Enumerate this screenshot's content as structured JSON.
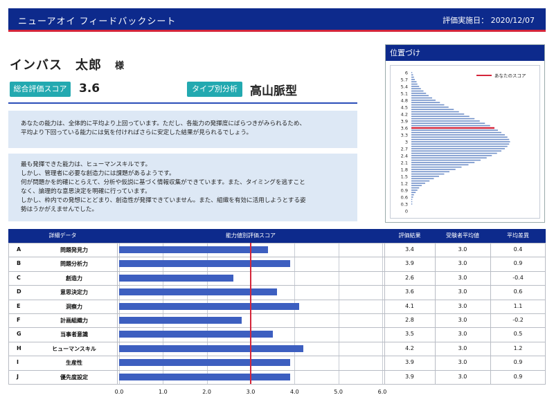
{
  "header": {
    "title": "ニューアオイ フィードバックシート",
    "date_label": "評価実施日： 2020/12/07"
  },
  "person": {
    "name": "インバス　太郎",
    "honorific": "様"
  },
  "summary": {
    "overall_label": "総合評価スコア",
    "overall_value": "3.6",
    "type_label": "タイプ別分析",
    "type_value": "高山脈型"
  },
  "comment1": {
    "lines": [
      "あなたの能力は、全体的に平均より上回っています。ただし、各能力の発揮度にばらつきがみられるため、",
      "平均より下回っている能力には気を付ければさらに安定した結果が見られるでしょう。"
    ]
  },
  "comment2": {
    "lines": [
      "最も発揮できた能力は、ヒューマンスキルです。",
      "しかし、管理者に必要な創造力には課題があるようです。",
      "何が問題かを的確にとらえて、分析や仮説に基づく情報収集ができています。また、タイミングを逃すこと",
      "なく、論理的な意思決定を明確に行っています。",
      "しかし、枠内での発想にとどまり、創造性が発揮できていません。また、組織を有効に活用しようとする姿",
      "勢はうかがえませんでした。"
    ]
  },
  "position_panel": {
    "title": "位置づけ",
    "legend": "あなたのスコア",
    "accent_color": "#d4253a",
    "bar_color": "#6f8fc9",
    "your_score": 3.6,
    "axis_labels": [
      "6",
      "5.7",
      "5.4",
      "5.1",
      "4.8",
      "4.5",
      "4.2",
      "3.9",
      "3.6",
      "3.3",
      "3",
      "2.7",
      "2.4",
      "2.1",
      "1.8",
      "1.5",
      "1.2",
      "0.9",
      "0.6",
      "0.3",
      "0"
    ],
    "chart_data": {
      "type": "bar",
      "orientation": "horizontal",
      "x": [
        6.0,
        5.9,
        5.8,
        5.7,
        5.6,
        5.5,
        5.4,
        5.3,
        5.2,
        5.1,
        5.0,
        4.9,
        4.8,
        4.7,
        4.6,
        4.5,
        4.4,
        4.3,
        4.2,
        4.1,
        4.0,
        3.9,
        3.8,
        3.7,
        3.6,
        3.5,
        3.4,
        3.3,
        3.2,
        3.1,
        3.0,
        2.9,
        2.8,
        2.7,
        2.6,
        2.5,
        2.4,
        2.3,
        2.2,
        2.1,
        2.0,
        1.9,
        1.8,
        1.7,
        1.6,
        1.5,
        1.4,
        1.3,
        1.2,
        1.1,
        1.0,
        0.9,
        0.8,
        0.7,
        0.6,
        0.5,
        0.4,
        0.3,
        0.2,
        0.1,
        0.0
      ],
      "values": [
        1,
        2,
        3,
        4,
        6,
        7,
        9,
        11,
        14,
        17,
        20,
        24,
        28,
        33,
        38,
        43,
        49,
        55,
        61,
        67,
        73,
        79,
        85,
        91,
        96,
        100,
        104,
        108,
        111,
        113,
        114,
        113,
        111,
        108,
        104,
        99,
        93,
        87,
        80,
        73,
        66,
        58,
        51,
        44,
        38,
        32,
        26,
        21,
        16,
        12,
        9,
        7,
        5,
        3,
        2,
        1,
        1,
        1,
        0,
        0,
        0
      ]
    }
  },
  "table": {
    "headers": [
      "詳細データ",
      "能力値別評価スコア",
      "評価結果",
      "受験者平均値",
      "平均差異"
    ],
    "rows": [
      {
        "code": "A",
        "name": "問題発見力",
        "score": "3.4",
        "avg": "3.0",
        "diff": "0.4"
      },
      {
        "code": "B",
        "name": "問題分析力",
        "score": "3.9",
        "avg": "3.0",
        "diff": "0.9"
      },
      {
        "code": "C",
        "name": "創造力",
        "score": "2.6",
        "avg": "3.0",
        "diff": "-0.4"
      },
      {
        "code": "D",
        "name": "意思決定力",
        "score": "3.6",
        "avg": "3.0",
        "diff": "0.6"
      },
      {
        "code": "E",
        "name": "洞察力",
        "score": "4.1",
        "avg": "3.0",
        "diff": "1.1"
      },
      {
        "code": "F",
        "name": "計画組織力",
        "score": "2.8",
        "avg": "3.0",
        "diff": "-0.2"
      },
      {
        "code": "G",
        "name": "当事者意識",
        "score": "3.5",
        "avg": "3.0",
        "diff": "0.5"
      },
      {
        "code": "H",
        "name": "ヒューマンスキル",
        "score": "4.2",
        "avg": "3.0",
        "diff": "1.2"
      },
      {
        "code": "I",
        "name": "生産性",
        "score": "3.9",
        "avg": "3.0",
        "diff": "0.9"
      },
      {
        "code": "J",
        "name": "優先度設定",
        "score": "3.9",
        "avg": "3.0",
        "diff": "0.9"
      }
    ],
    "axis_ticks": [
      "0.0",
      "1.0",
      "2.0",
      "3.0",
      "4.0",
      "5.0",
      "6.0"
    ],
    "reference_value": 3.0,
    "chart_data": {
      "type": "bar",
      "orientation": "horizontal",
      "categories": [
        "問題発見力",
        "問題分析力",
        "創造力",
        "意思決定力",
        "洞察力",
        "計画組織力",
        "当事者意識",
        "ヒューマンスキル",
        "生産性",
        "優先度設定"
      ],
      "values": [
        3.4,
        3.9,
        2.6,
        3.6,
        4.1,
        2.8,
        3.5,
        4.2,
        3.9,
        3.9
      ],
      "xlim": [
        0,
        6
      ],
      "reference_line": 3.0
    }
  }
}
